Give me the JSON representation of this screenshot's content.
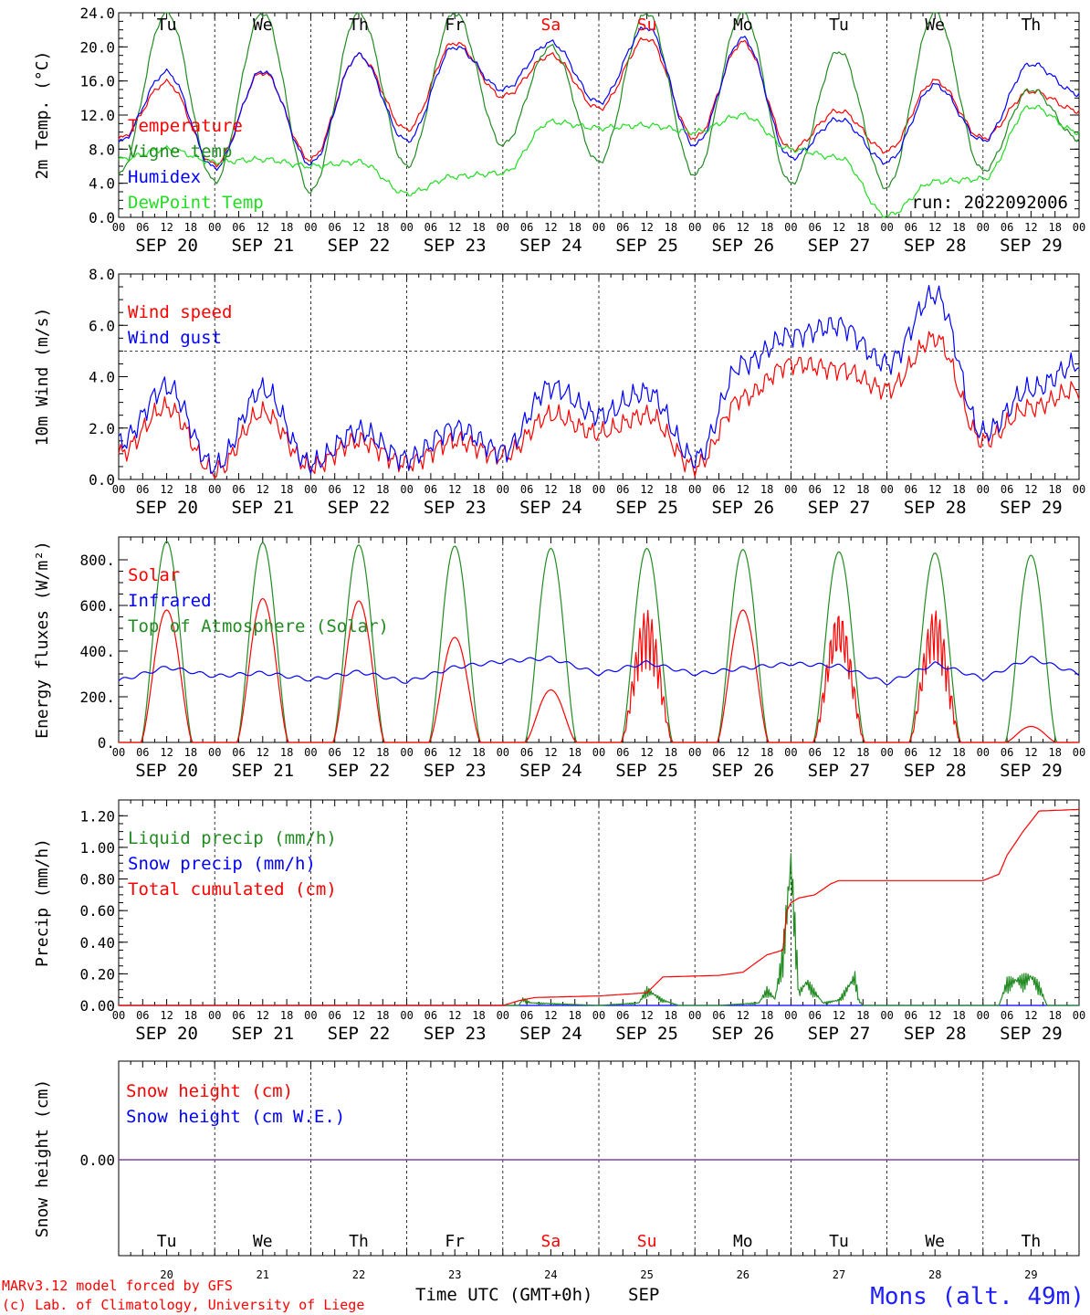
{
  "chart_data": [
    {
      "type": "line",
      "ylabel": "2m Temp. (°C)",
      "ylim": [
        0,
        24
      ],
      "yticks": [
        "0.0",
        "4.0",
        "8.0",
        "12.0",
        "16.0",
        "20.0",
        "24.0"
      ],
      "run_label": "run: 2022092006",
      "day_names": [
        "Tu",
        "We",
        "Th",
        "Fr",
        "Sa",
        "Su",
        "Mo",
        "Tu",
        "We",
        "Th"
      ],
      "weekend_color": "#ff0000",
      "series": [
        {
          "name": "Temperature",
          "color": "#ff0000",
          "x": [
            0,
            12,
            24,
            36,
            48,
            60,
            72,
            84,
            96,
            108,
            120,
            132,
            144,
            156,
            168,
            180,
            192,
            204,
            216,
            228,
            240
          ],
          "y": [
            9.2,
            15.8,
            6.2,
            17.0,
            6.8,
            19.0,
            10.3,
            20.5,
            14.2,
            19.0,
            12.8,
            21.0,
            9.3,
            20.5,
            8.0,
            12.5,
            7.8,
            16.0,
            9.3,
            14.8,
            12.5
          ]
        },
        {
          "name": "Vigne temp",
          "color": "#228b22",
          "x": [
            0,
            12,
            24,
            36,
            48,
            60,
            72,
            84,
            96,
            108,
            120,
            132,
            144,
            156,
            168,
            180,
            192,
            204,
            216,
            228,
            240
          ],
          "y": [
            5.0,
            24.0,
            4.2,
            24.0,
            3.0,
            24.0,
            6.0,
            24.0,
            8.5,
            20.0,
            6.5,
            24.0,
            5.0,
            24.0,
            4.0,
            19.5,
            3.5,
            24.0,
            5.5,
            15.0,
            9.2
          ]
        },
        {
          "name": "Humidex",
          "color": "#0000ff",
          "x": [
            0,
            12,
            24,
            36,
            48,
            60,
            72,
            84,
            96,
            108,
            120,
            132,
            144,
            156,
            168,
            180,
            192,
            204,
            216,
            228,
            240
          ],
          "y": [
            8.8,
            17.0,
            5.8,
            17.2,
            6.3,
            19.0,
            9.0,
            20.0,
            15.0,
            20.5,
            13.5,
            22.3,
            8.5,
            21.0,
            7.0,
            11.5,
            6.5,
            15.5,
            9.0,
            18.0,
            14.5
          ]
        },
        {
          "name": "DewPoint Temp",
          "color": "#22dd22",
          "x": [
            0,
            12,
            24,
            36,
            48,
            60,
            72,
            84,
            96,
            108,
            120,
            132,
            144,
            156,
            168,
            180,
            192,
            204,
            216,
            228,
            240
          ],
          "y": [
            6.8,
            8.0,
            6.5,
            6.8,
            6.0,
            6.5,
            2.8,
            4.8,
            5.2,
            11.2,
            10.5,
            10.8,
            10.0,
            12.0,
            8.0,
            7.0,
            0.2,
            4.2,
            4.5,
            13.0,
            10.0
          ]
        }
      ]
    },
    {
      "type": "line",
      "ylabel": "10m Wind (m/s)",
      "ylim": [
        0,
        8
      ],
      "yticks": [
        "0.0",
        "2.0",
        "4.0",
        "6.0",
        "8.0"
      ],
      "reference_line": 5.0,
      "series": [
        {
          "name": "Wind speed",
          "color": "#ff0000",
          "x": [
            0,
            12,
            24,
            36,
            48,
            60,
            72,
            84,
            96,
            108,
            120,
            132,
            144,
            156,
            168,
            180,
            192,
            204,
            216,
            228,
            240
          ],
          "y": [
            1.0,
            2.8,
            0.3,
            2.6,
            0.5,
            1.5,
            0.6,
            1.5,
            0.9,
            2.5,
            1.8,
            2.5,
            0.5,
            3.2,
            4.5,
            4.3,
            3.5,
            5.5,
            1.5,
            2.8,
            3.5
          ]
        },
        {
          "name": "Wind gust",
          "color": "#0000ff",
          "x": [
            0,
            12,
            24,
            36,
            48,
            60,
            72,
            84,
            96,
            108,
            120,
            132,
            144,
            156,
            168,
            180,
            192,
            204,
            216,
            228,
            240
          ],
          "y": [
            1.4,
            3.6,
            0.5,
            3.5,
            0.6,
            1.9,
            0.8,
            2.0,
            1.1,
            3.6,
            2.5,
            3.4,
            0.8,
            4.5,
            5.6,
            6.0,
            4.5,
            7.2,
            1.8,
            3.5,
            4.5
          ]
        }
      ]
    },
    {
      "type": "line",
      "ylabel": "Energy fluxes (W/m²)",
      "ylim": [
        0,
        900
      ],
      "yticks": [
        "0.",
        "200.",
        "400.",
        "600.",
        "800."
      ],
      "series": [
        {
          "name": "Solar",
          "color": "#ff0000",
          "daily_peak": [
            580,
            630,
            620,
            460,
            230,
            580,
            580,
            570,
            580,
            70
          ]
        },
        {
          "name": "Infrared",
          "color": "#0000ff",
          "x": [
            0,
            12,
            24,
            36,
            48,
            60,
            72,
            84,
            96,
            108,
            120,
            132,
            144,
            156,
            168,
            180,
            192,
            204,
            216,
            228,
            240
          ],
          "y": [
            270,
            330,
            290,
            305,
            275,
            310,
            265,
            330,
            355,
            370,
            300,
            350,
            300,
            325,
            345,
            335,
            260,
            345,
            280,
            370,
            300
          ]
        },
        {
          "name": "Top of Atmosphere (Solar)",
          "color": "#228b22",
          "daily_peak": [
            880,
            875,
            865,
            860,
            850,
            850,
            845,
            835,
            830,
            820
          ]
        }
      ]
    },
    {
      "type": "line",
      "ylabel": "Precip (mm/h)",
      "ylim": [
        0,
        1.3
      ],
      "yticks": [
        "0.00",
        "0.20",
        "0.40",
        "0.60",
        "0.80",
        "1.00",
        "1.20"
      ],
      "series": [
        {
          "name": "Liquid precip (mm/h)",
          "color": "#228b22",
          "x": [
            0,
            100,
            101,
            103,
            120,
            130,
            132,
            136,
            140,
            150,
            160,
            162,
            164,
            166,
            168,
            170,
            172,
            176,
            180,
            184,
            185,
            186,
            220,
            222,
            226,
            228,
            230,
            232,
            240
          ],
          "y": [
            0,
            0,
            0.05,
            0.02,
            0,
            0.02,
            0.12,
            0.04,
            0,
            0,
            0.02,
            0.12,
            0.05,
            0.4,
            1.1,
            0.1,
            0.18,
            0.02,
            0.04,
            0.22,
            0.04,
            0,
            0,
            0.18,
            0.2,
            0.22,
            0.15,
            0,
            0
          ]
        },
        {
          "name": "Snow precip (mm/h)",
          "color": "#0000ff",
          "x": [
            0,
            240
          ],
          "y": [
            0,
            0
          ]
        },
        {
          "name": "Total cumulated (cm)",
          "color": "#ff0000",
          "x": [
            0,
            96,
            100,
            104,
            120,
            132,
            136,
            150,
            156,
            162,
            166,
            167,
            168,
            170,
            174,
            178,
            180,
            200,
            216,
            220,
            222,
            226,
            230,
            240
          ],
          "y": [
            0,
            0,
            0.03,
            0.05,
            0.06,
            0.08,
            0.18,
            0.19,
            0.21,
            0.32,
            0.35,
            0.6,
            0.65,
            0.68,
            0.7,
            0.77,
            0.79,
            0.79,
            0.79,
            0.83,
            0.95,
            1.1,
            1.23,
            1.24
          ]
        }
      ]
    },
    {
      "type": "line",
      "ylabel": "Snow height (cm)",
      "yticks": [
        "0.00"
      ],
      "series": [
        {
          "name": "Snow height (cm)",
          "color": "#ff0000",
          "x": [
            0,
            240
          ],
          "y": [
            0,
            0
          ]
        },
        {
          "name": "Snow height (cm W.E.)",
          "color": "#0000ff",
          "x": [
            0,
            240
          ],
          "y": [
            0,
            0
          ]
        }
      ],
      "line_color": "#8040a0",
      "day_names": [
        "Tu",
        "We",
        "Th",
        "Fr",
        "Sa",
        "Su",
        "Mo",
        "Tu",
        "We",
        "Th"
      ],
      "day_numbers": [
        "20",
        "21",
        "22",
        "23",
        "24",
        "25",
        "26",
        "27",
        "28",
        "29"
      ]
    }
  ],
  "x_axis": {
    "hour_ticks": [
      "00",
      "06",
      "12",
      "18"
    ],
    "final_tick": "00",
    "dates": [
      "SEP 20",
      "SEP 21",
      "SEP 22",
      "SEP 23",
      "SEP 24",
      "SEP 25",
      "SEP 26",
      "SEP 27",
      "SEP 28",
      "SEP 29"
    ],
    "xlabel": "Time UTC (GMT+0h)",
    "month": "SEP"
  },
  "footer": {
    "credit_line1": "MARv3.12 model forced by GFS",
    "credit_line2": "(c) Lab. of Climatology, University of Liege",
    "station": "Mons (alt. 49m)"
  }
}
